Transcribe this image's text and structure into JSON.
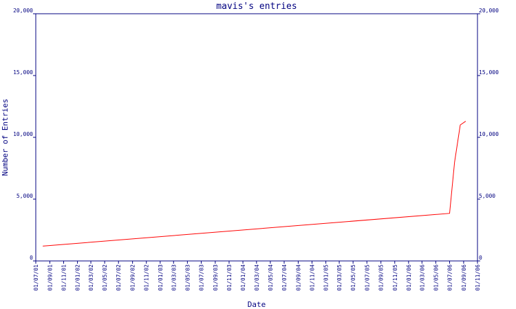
{
  "chart_data": {
    "type": "line",
    "title": "mavis's entries",
    "x_label": "Date",
    "y_label": "Number of Entries",
    "x": [
      "2001-08-01",
      "2006-07-01",
      "2006-07-23",
      "2006-08-17",
      "2006-09-10"
    ],
    "series": [
      {
        "name": "mavis",
        "color": "#ff0000",
        "values": [
          1200,
          3850,
          8000,
          11000,
          11300
        ]
      }
    ],
    "xlim": [
      "2001-07-01",
      "2006-11-01"
    ],
    "xticks": [
      {
        "value": "2001-07-01",
        "label": "01/07/01"
      },
      {
        "value": "2001-09-01",
        "label": "01/09/01"
      },
      {
        "value": "2001-11-01",
        "label": "01/11/01"
      },
      {
        "value": "2002-01-01",
        "label": "01/01/02"
      },
      {
        "value": "2002-03-01",
        "label": "01/03/02"
      },
      {
        "value": "2002-05-01",
        "label": "01/05/02"
      },
      {
        "value": "2002-07-01",
        "label": "01/07/02"
      },
      {
        "value": "2002-09-01",
        "label": "01/09/02"
      },
      {
        "value": "2002-11-01",
        "label": "01/11/02"
      },
      {
        "value": "2003-01-01",
        "label": "01/01/03"
      },
      {
        "value": "2003-03-01",
        "label": "01/03/03"
      },
      {
        "value": "2003-05-01",
        "label": "01/05/03"
      },
      {
        "value": "2003-07-01",
        "label": "01/07/03"
      },
      {
        "value": "2003-09-01",
        "label": "01/09/03"
      },
      {
        "value": "2003-11-01",
        "label": "01/11/03"
      },
      {
        "value": "2004-01-01",
        "label": "01/01/04"
      },
      {
        "value": "2004-03-01",
        "label": "01/03/04"
      },
      {
        "value": "2004-05-01",
        "label": "01/05/04"
      },
      {
        "value": "2004-07-01",
        "label": "01/07/04"
      },
      {
        "value": "2004-09-01",
        "label": "01/09/04"
      },
      {
        "value": "2004-11-01",
        "label": "01/11/04"
      },
      {
        "value": "2005-01-01",
        "label": "01/01/05"
      },
      {
        "value": "2005-03-01",
        "label": "01/03/05"
      },
      {
        "value": "2005-05-01",
        "label": "01/05/05"
      },
      {
        "value": "2005-07-01",
        "label": "01/07/05"
      },
      {
        "value": "2005-09-01",
        "label": "01/09/05"
      },
      {
        "value": "2005-11-01",
        "label": "01/11/05"
      },
      {
        "value": "2006-01-01",
        "label": "01/01/06"
      },
      {
        "value": "2006-03-01",
        "label": "01/03/06"
      },
      {
        "value": "2006-05-01",
        "label": "01/05/06"
      },
      {
        "value": "2006-07-01",
        "label": "01/07/06"
      },
      {
        "value": "2006-09-01",
        "label": "01/09/06"
      },
      {
        "value": "2006-11-01",
        "label": "01/11/06"
      }
    ],
    "ylim": [
      0,
      20000
    ],
    "yticks": [
      0,
      {
        "value": 5000,
        "label": "5,000"
      },
      {
        "value": 10000,
        "label": "10,000"
      },
      {
        "value": 15000,
        "label": "15,000"
      },
      {
        "value": 20000,
        "label": "20,000"
      }
    ],
    "axis_color": "#000080"
  }
}
